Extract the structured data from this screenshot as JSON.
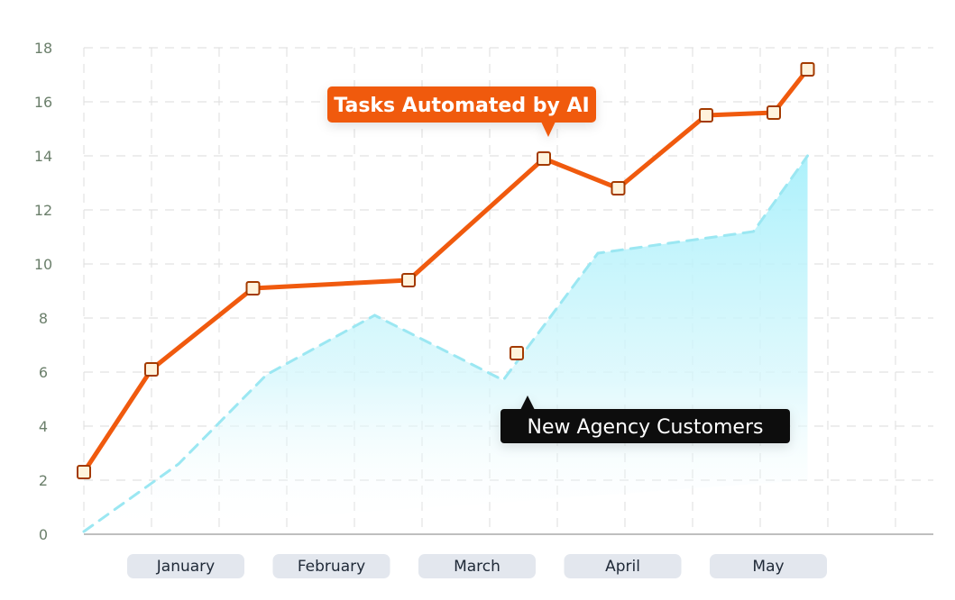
{
  "chart_data": {
    "type": "line",
    "title": "",
    "xlabel": "",
    "ylabel": "",
    "ylim": [
      0,
      18
    ],
    "yticks": [
      0,
      2,
      4,
      6,
      8,
      10,
      12,
      14,
      16,
      18
    ],
    "categories": [
      "January",
      "February",
      "March",
      "April",
      "May"
    ],
    "grid": true,
    "x": [
      0,
      0.5,
      1,
      1.5,
      2,
      2.5,
      3,
      3.5,
      4,
      4.5,
      5,
      5.5,
      6,
      6.5,
      7,
      7.5,
      8,
      8.5,
      9
    ],
    "series": [
      {
        "name": "Tasks Automated by AI",
        "style": "solid-line-square-markers",
        "color": "#f05a0e",
        "points": [
          [
            0,
            2.3
          ],
          [
            1,
            6.1
          ],
          [
            2.5,
            9.1
          ],
          [
            4.8,
            9.4
          ],
          [
            6.8,
            13.9
          ],
          [
            7.9,
            12.8
          ],
          [
            9.2,
            15.5
          ],
          [
            10.2,
            15.6
          ],
          [
            10.7,
            17.2
          ]
        ],
        "label_anchor_index": 4
      },
      {
        "name": "New Agency Customers",
        "style": "dashed-line-area",
        "color": "#9be7f2",
        "points": [
          [
            0,
            0.1
          ],
          [
            1.4,
            2.6
          ],
          [
            2.7,
            5.9
          ],
          [
            4.3,
            8.1
          ],
          [
            6.2,
            5.7
          ],
          [
            7.6,
            10.4
          ],
          [
            9.9,
            11.2
          ],
          [
            10.7,
            14.0
          ]
        ],
        "extra_marker": [
          6.4,
          6.7
        ]
      }
    ],
    "x_max": 11.4,
    "colors": {
      "grid": "#e2e2e2",
      "axis": "#bfbfbf",
      "pill_bg": "#e3e7ee",
      "marker_fill": "#fff3dc",
      "marker_stroke": "#a33a00",
      "callout_orange": "#f05a0e",
      "callout_black": "#0a0a0a"
    }
  }
}
